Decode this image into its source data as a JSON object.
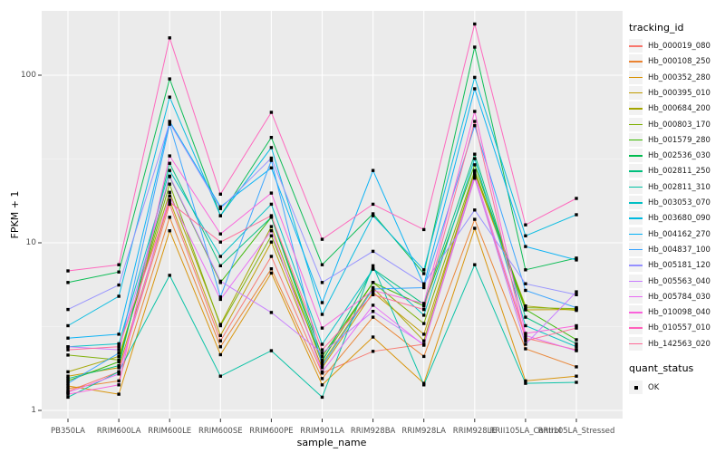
{
  "figure": {
    "panel_bg": "#EBEBEB",
    "grid_major_color": "#FFFFFF",
    "grid_minor_color": "#F5F5F5",
    "tick_color": "#333333",
    "tick_label_color": "#4D4D4D",
    "legend_key_bg": "#F2F2F2",
    "point_color": "#000000"
  },
  "chart_data": {
    "type": "line",
    "title": "",
    "xlabel": "sample_name",
    "ylabel": "FPKM + 1",
    "y_scale": "log10",
    "y_ticks": [
      "1",
      "10",
      "100"
    ],
    "ylim": [
      0.9,
      240
    ],
    "grid": true,
    "legend_position": "right",
    "legend_title": "tracking_id",
    "quant_legend": {
      "title": "quant_status",
      "items": [
        "OK"
      ]
    },
    "point_shape": "filled-square",
    "categories": [
      "PB350LA",
      "RRIM600LA",
      "RRIM600LE",
      "RRIM600SE",
      "RRIM600PE",
      "RRIM901LA",
      "RRIM928BA",
      "RRIM928LA",
      "RRIM928LE",
      "RRII105LA_Control",
      "RRII105LA_Stressed"
    ],
    "series": [
      {
        "name": "Hb_000019_080",
        "color": "#F8766D",
        "values": [
          1.3,
          1.7,
          17,
          2.6,
          8.3,
          1.67,
          2.25,
          2.48,
          24.3,
          2.7,
          2.3
        ]
      },
      {
        "name": "Hb_000108_250",
        "color": "#EA8331",
        "values": [
          1.35,
          1.5,
          14.2,
          2.4,
          7.0,
          1.55,
          3.6,
          2.1,
          13.8,
          2.33,
          1.82
        ]
      },
      {
        "name": "Hb_000352_280",
        "color": "#D89000",
        "values": [
          1.4,
          1.25,
          11.8,
          2.15,
          6.6,
          1.42,
          2.74,
          1.45,
          12.2,
          1.5,
          1.6
        ]
      },
      {
        "name": "Hb_000395_010",
        "color": "#C09B00",
        "values": [
          1.6,
          1.8,
          18,
          2.8,
          10.1,
          1.8,
          5.05,
          2.85,
          26,
          3.98,
          4.0
        ]
      },
      {
        "name": "Hb_000684_200",
        "color": "#A3A500",
        "values": [
          1.7,
          2.1,
          20,
          3.26,
          12.5,
          1.9,
          5.4,
          2.6,
          26.5,
          4.2,
          3.95
        ]
      },
      {
        "name": "Hb_000803_170",
        "color": "#7CAE00",
        "values": [
          2.14,
          2.0,
          22.4,
          3.2,
          11.0,
          2.0,
          5.8,
          3.3,
          27,
          4.1,
          4.05
        ]
      },
      {
        "name": "Hb_001579_280",
        "color": "#39B600",
        "values": [
          1.5,
          1.95,
          24.8,
          5.8,
          14.2,
          2.1,
          5.8,
          4.2,
          29.2,
          4.0,
          2.64
        ]
      },
      {
        "name": "Hb_002536_030",
        "color": "#00BB4E",
        "values": [
          5.8,
          6.7,
          95,
          14.5,
          42.5,
          7.4,
          14.9,
          6.55,
          147,
          6.9,
          8.1
        ]
      },
      {
        "name": "Hb_002811_250",
        "color": "#00BF7D",
        "values": [
          1.55,
          1.85,
          29.8,
          7.3,
          14.2,
          1.95,
          7.0,
          4.3,
          33.8,
          3.6,
          2.5
        ]
      },
      {
        "name": "Hb_002811_310",
        "color": "#00C1A3",
        "values": [
          1.2,
          1.7,
          6.4,
          1.6,
          2.27,
          1.2,
          7.3,
          1.42,
          7.4,
          1.45,
          1.47
        ]
      },
      {
        "name": "Hb_003053_070",
        "color": "#00BFC4",
        "values": [
          2.4,
          2.5,
          27,
          8.3,
          17,
          2.48,
          6.96,
          3.7,
          31.8,
          3.2,
          2.4
        ]
      },
      {
        "name": "Hb_003680_090",
        "color": "#00BAE0",
        "values": [
          3.2,
          4.8,
          74,
          14.5,
          37,
          3.74,
          14.5,
          6.9,
          97,
          11,
          14.7
        ]
      },
      {
        "name": "Hb_004162_270",
        "color": "#00B0F6",
        "values": [
          2.7,
          2.85,
          53,
          16.4,
          28,
          4.4,
          27,
          5.6,
          83,
          9.5,
          7.9
        ]
      },
      {
        "name": "Hb_004837_100",
        "color": "#35A2FF",
        "values": [
          1.45,
          2.2,
          51,
          4.75,
          31,
          1.85,
          5.3,
          5.4,
          50,
          5.2,
          4.1
        ]
      },
      {
        "name": "Hb_005181_120",
        "color": "#9590FF",
        "values": [
          4.0,
          5.6,
          52,
          16,
          32,
          5.8,
          8.9,
          5.7,
          15.7,
          5.7,
          4.9
        ]
      },
      {
        "name": "Hb_005563_040",
        "color": "#C77CFF",
        "values": [
          2.4,
          2.3,
          25,
          5.9,
          3.84,
          2.2,
          3.9,
          2.48,
          24.5,
          2.48,
          5.1
        ]
      },
      {
        "name": "Hb_005784_030",
        "color": "#E76BF3",
        "values": [
          1.28,
          1.65,
          19,
          4.6,
          11.8,
          1.7,
          4.24,
          2.45,
          25.5,
          2.8,
          2.27
        ]
      },
      {
        "name": "Hb_010098_040",
        "color": "#FA62DB",
        "values": [
          1.25,
          1.42,
          33,
          11.3,
          19.8,
          3.1,
          5.2,
          4.35,
          60.8,
          2.88,
          3.2
        ]
      },
      {
        "name": "Hb_010557_010",
        "color": "#FF62BC",
        "values": [
          6.8,
          7.4,
          167,
          19.5,
          60,
          10.5,
          17,
          12,
          202,
          12.8,
          18.4
        ]
      },
      {
        "name": "Hb_142563_020",
        "color": "#FF6A98",
        "values": [
          2.3,
          2.4,
          17.5,
          10.1,
          14.5,
          2.3,
          4.9,
          4.0,
          53,
          2.6,
          3.1
        ]
      }
    ]
  }
}
